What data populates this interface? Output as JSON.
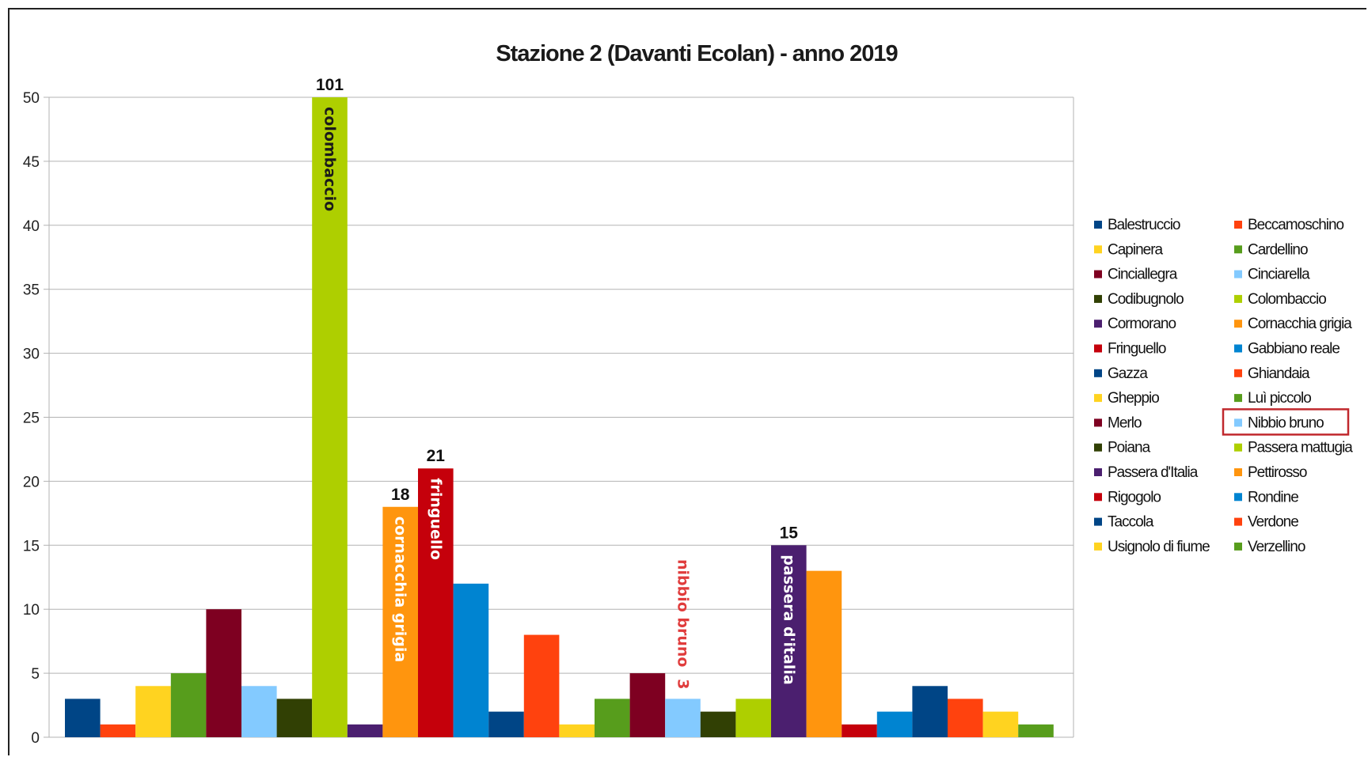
{
  "chart_data": {
    "type": "bar",
    "title": "Stazione 2 (Davanti Ecolan) - anno 2019",
    "xlabel": "",
    "ylabel": "",
    "ylim": [
      0,
      50
    ],
    "yticks": [
      0,
      5,
      10,
      15,
      20,
      25,
      30,
      35,
      40,
      45,
      50
    ],
    "grid": true,
    "legend_position": "right",
    "series": [
      {
        "name": "Balestruccio",
        "value": 3,
        "color": "#004586"
      },
      {
        "name": "Beccamoschino",
        "value": 1,
        "color": "#ff420e"
      },
      {
        "name": "Capinera",
        "value": 4,
        "color": "#ffd320"
      },
      {
        "name": "Cardellino",
        "value": 5,
        "color": "#579d1c"
      },
      {
        "name": "Cinciallegra",
        "value": 10,
        "color": "#7e0021"
      },
      {
        "name": "Cinciarella",
        "value": 4,
        "color": "#83caff"
      },
      {
        "name": "Codibugnolo",
        "value": 3,
        "color": "#314004"
      },
      {
        "name": "Colombaccio",
        "value": 101,
        "color": "#aecf00"
      },
      {
        "name": "Cormorano",
        "value": 1,
        "color": "#4b1f6f"
      },
      {
        "name": "Cornacchia grigia",
        "value": 18,
        "color": "#ff950e"
      },
      {
        "name": "Fringuello",
        "value": 21,
        "color": "#c5000b"
      },
      {
        "name": "Gabbiano reale",
        "value": 12,
        "color": "#0084d1"
      },
      {
        "name": "Gazza",
        "value": 2,
        "color": "#004586"
      },
      {
        "name": "Ghiandaia",
        "value": 8,
        "color": "#ff420e"
      },
      {
        "name": "Gheppio",
        "value": 1,
        "color": "#ffd320"
      },
      {
        "name": "Luì piccolo",
        "value": 3,
        "color": "#579d1c"
      },
      {
        "name": "Merlo",
        "value": 5,
        "color": "#7e0021"
      },
      {
        "name": "Nibbio bruno",
        "value": 3,
        "color": "#83caff"
      },
      {
        "name": "Poiana",
        "value": 2,
        "color": "#314004"
      },
      {
        "name": "Passera mattugia",
        "value": 3,
        "color": "#aecf00"
      },
      {
        "name": "Passera d'Italia",
        "value": 15,
        "color": "#4b1f6f"
      },
      {
        "name": "Pettirosso",
        "value": 13,
        "color": "#ff950e"
      },
      {
        "name": "Rigogolo",
        "value": 1,
        "color": "#c5000b"
      },
      {
        "name": "Rondine",
        "value": 2,
        "color": "#0084d1"
      },
      {
        "name": "Taccola",
        "value": 4,
        "color": "#004586"
      },
      {
        "name": "Verdone",
        "value": 3,
        "color": "#ff420e"
      },
      {
        "name": "Usignolo di fiume",
        "value": 2,
        "color": "#ffd320"
      },
      {
        "name": "Verzellino",
        "value": 1,
        "color": "#579d1c"
      }
    ],
    "bar_annotations": [
      {
        "series": "Colombaccio",
        "value_label": "101",
        "inner_label": "colombaccio",
        "inner_color": "#1a1a1a"
      },
      {
        "series": "Cornacchia grigia",
        "value_label": "18",
        "inner_label": "cornacchia grigia",
        "inner_color": "#ffffff"
      },
      {
        "series": "Fringuello",
        "value_label": "21",
        "inner_label": "fringuello",
        "inner_color": "#ffffff"
      },
      {
        "series": "Nibbio bruno",
        "value_label": "3",
        "inner_label": "nibbio bruno",
        "inner_color": "#e03c3c",
        "label_above": true
      },
      {
        "series": "Passera d'Italia",
        "value_label": "15",
        "inner_label": "passera d'italia",
        "inner_color": "#ffffff"
      }
    ],
    "legend": [
      "Balestruccio",
      "Beccamoschino",
      "Capinera",
      "Cardellino",
      "Cinciallegra",
      "Cinciarella",
      "Codibugnolo",
      "Colombaccio",
      "Cormorano",
      "Cornacchia grigia",
      "Fringuello",
      "Gabbiano reale",
      "Gazza",
      "Ghiandaia",
      "Gheppio",
      "Luì piccolo",
      "Merlo",
      "Nibbio bruno",
      "Poiana",
      "Passera mattugia",
      "Passera d'Italia",
      "Pettirosso",
      "Rigogolo",
      "Rondine",
      "Taccola",
      "Verdone",
      "Usignolo di fiume",
      "Verzellino"
    ],
    "legend_highlight": "Nibbio bruno",
    "highlight_color": "#c0282d",
    "axis_color": "#b3b3b3"
  }
}
